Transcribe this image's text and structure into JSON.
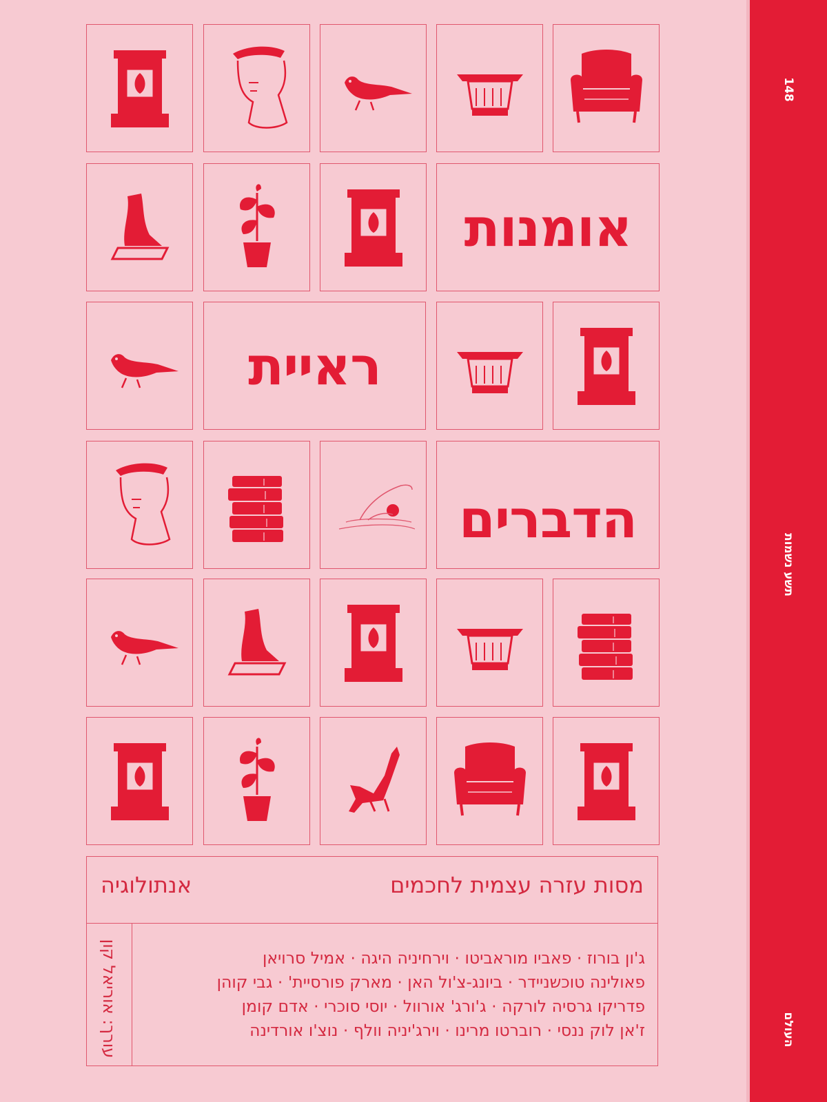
{
  "spine": {
    "number": "148",
    "series": "תשע נשמות",
    "publisher": "העולם"
  },
  "cover": {
    "title_words": [
      "אומנות",
      "ראיית",
      "הדברים"
    ],
    "subtitle": "מסות עזרה עצמית לחכמים",
    "genre": "אנתולוגיה",
    "editor": "עורך: אוריאל קון",
    "author_lines": [
      "ג'ון בורוז · פאביו מוראביטו · וירחיניה היגה · אמיל סרויאן",
      "פאולינה טוכשניידר · ביונג-צ'ול האן · מארק פורסיית' · גבי קוהן",
      "פדריקו גרסיה לורקה · ג'ורג' אורוול · יוסי סוכרי · אדם קומן",
      "ז'אן לוק ננסי · רוברטו מרינו · וירג'יניה וולף · נוצ'ו אורדינה"
    ]
  },
  "grid_icons": [
    [
      "pedestal",
      "bust",
      "pigeon",
      "column-capital",
      "armchair"
    ],
    [
      "foot-statue",
      "potted-plant",
      "pedestal",
      "title",
      "title"
    ],
    [
      "pigeon",
      "title",
      "title",
      "column-capital",
      "pedestal"
    ],
    [
      "bust",
      "books",
      "swimmer",
      "title",
      "title"
    ],
    [
      "pigeon",
      "foot-statue",
      "pedestal",
      "column-capital",
      "books"
    ],
    [
      "pedestal",
      "potted-plant",
      "origami-cat",
      "armchair",
      "pedestal"
    ]
  ],
  "colors": {
    "background": "#f7cad2",
    "accent": "#e31c35",
    "line": "#e0566d"
  }
}
